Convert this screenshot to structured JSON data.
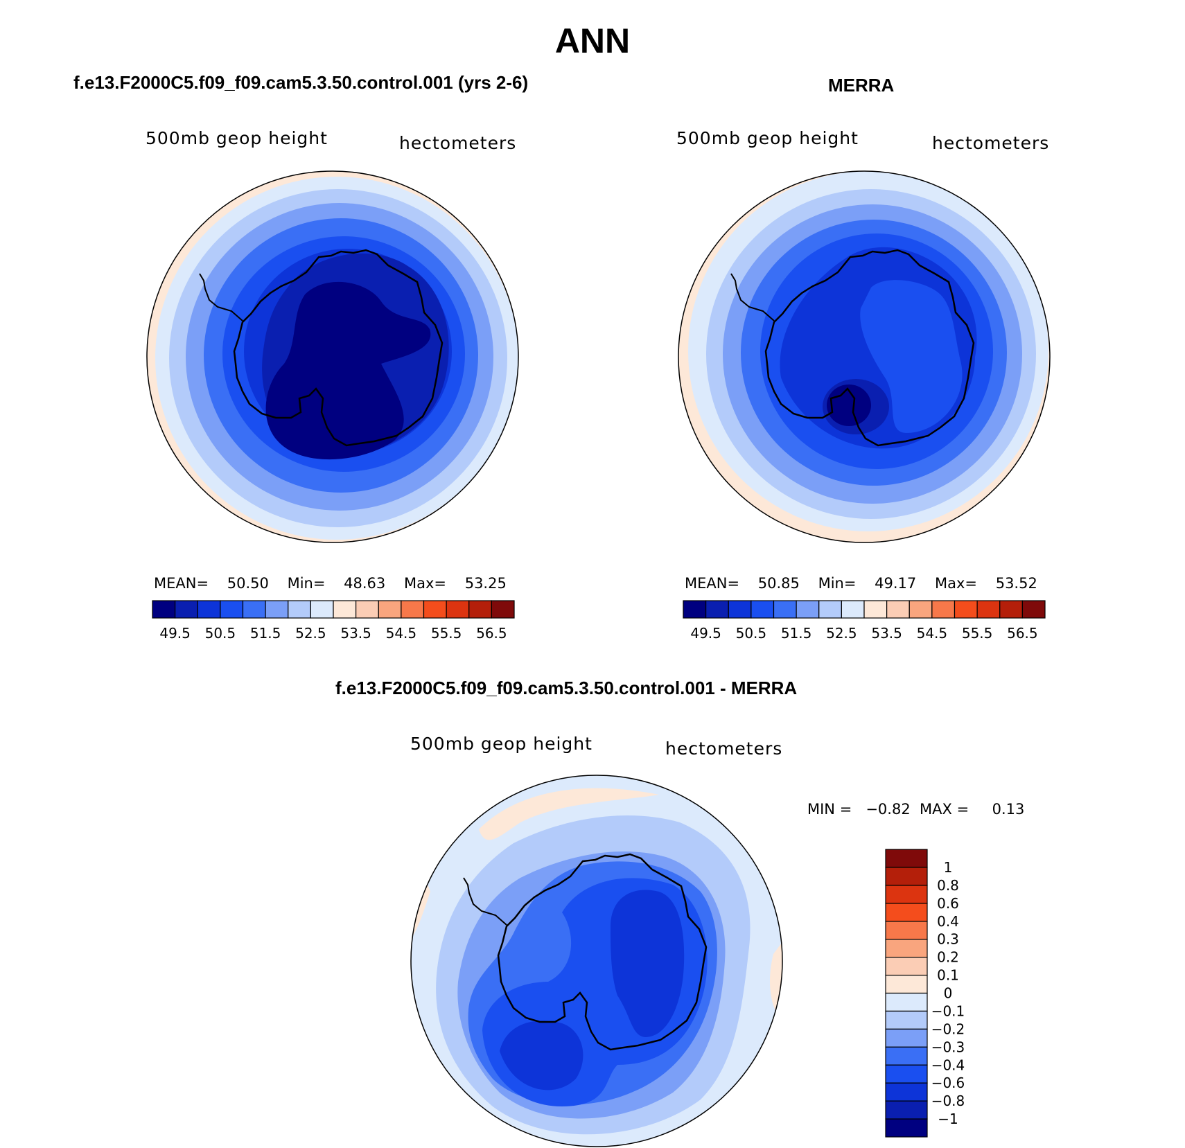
{
  "title": "ANN",
  "panels": [
    {
      "title": "f.e13.F2000C5.f09_f09.cam5.3.50.control.001 (yrs 2-6)",
      "variable_label": "500mb geop height",
      "units_label": "hectometers",
      "stats": {
        "mean_label": "MEAN=",
        "mean": "50.50",
        "min_label": "Min=",
        "min": "48.63",
        "max_label": "Max=",
        "max": "53.25"
      }
    },
    {
      "title": "MERRA",
      "variable_label": "500mb geop height",
      "units_label": "hectometers",
      "stats": {
        "mean_label": "MEAN=",
        "mean": "50.85",
        "min_label": "Min=",
        "min": "49.17",
        "max_label": "Max=",
        "max": "53.52"
      }
    },
    {
      "title": "f.e13.F2000C5.f09_f09.cam5.3.50.control.001 - MERRA",
      "variable_label": "500mb geop height",
      "units_label": "hectometers",
      "range": {
        "min_label": "MIN =",
        "min": "−0.82",
        "max_label": "MAX =",
        "max": "0.13"
      }
    }
  ],
  "horizontal_colorbar": {
    "colors": [
      "#000080",
      "#0a1fb0",
      "#0d34d8",
      "#1a4ff0",
      "#3a6ff5",
      "#7b9ff7",
      "#b3cbfa",
      "#dceafc",
      "#fde8d8",
      "#fbcdb5",
      "#f9a57e",
      "#f7784a",
      "#f44d1c",
      "#dc3410",
      "#b41f0a",
      "#7f0a0a"
    ],
    "tick_labels": [
      "49.5",
      "50.5",
      "51.5",
      "52.5",
      "53.5",
      "54.5",
      "55.5",
      "56.5"
    ]
  },
  "vertical_colorbar": {
    "colors": [
      "#7f0a0a",
      "#b41f0a",
      "#dc3410",
      "#f44d1c",
      "#f7784a",
      "#f9a57e",
      "#fbcdb5",
      "#fde8d8",
      "#dceafc",
      "#b3cbfa",
      "#7b9ff7",
      "#3a6ff5",
      "#1a4ff0",
      "#0d34d8",
      "#0a1fb0",
      "#000080"
    ],
    "tick_labels": [
      "1",
      "0.8",
      "0.6",
      "0.4",
      "0.3",
      "0.2",
      "0.1",
      "0",
      "−0.1",
      "−0.2",
      "−0.3",
      "−0.4",
      "−0.6",
      "−0.8",
      "−1"
    ]
  },
  "map_colors": {
    "fill_deep": "#000080",
    "fill_dark": "#0a1fb0",
    "fill_mid": "#0d34d8",
    "fill_blue": "#1a4ff0",
    "fill_med": "#3a6ff5",
    "fill_light": "#7b9ff7",
    "fill_pale": "#b3cbfa",
    "fill_faint": "#dceafc",
    "fill_warm": "#fde8d8",
    "fill_warm2": "#fbcdb5"
  }
}
